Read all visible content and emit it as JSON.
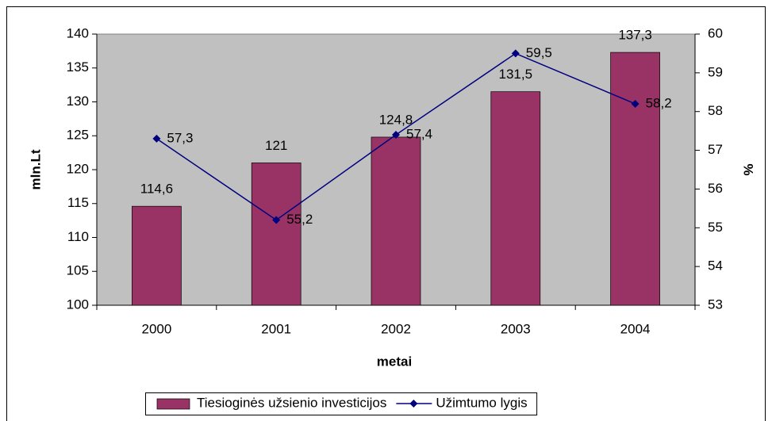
{
  "chart_data": {
    "type": "bar",
    "categories": [
      "2000",
      "2001",
      "2002",
      "2003",
      "2004"
    ],
    "series": [
      {
        "name": "Tiesioginės užsienio investicijos",
        "type": "bar",
        "color": "#993366",
        "values": [
          114.6,
          121,
          124.8,
          131.5,
          137.3
        ],
        "value_labels": [
          "114,6",
          "121",
          "124,8",
          "131,5",
          "137,3"
        ]
      },
      {
        "name": "Užimtumo lygis",
        "type": "line",
        "axis": "y2",
        "color": "#000080",
        "values": [
          57.3,
          55.2,
          57.4,
          59.5,
          58.2
        ],
        "value_labels": [
          "57,3",
          "55,2",
          "57,4",
          "59,5",
          "58,2"
        ]
      }
    ],
    "ylim": [
      100,
      140
    ],
    "yticks": [
      100,
      105,
      110,
      115,
      120,
      125,
      130,
      135,
      140
    ],
    "y2lim": [
      53,
      60
    ],
    "y2ticks": [
      53,
      54,
      55,
      56,
      57,
      58,
      59,
      60
    ],
    "xlabel": "metai",
    "ylabel": "mln.Lt",
    "y2label": "%",
    "legend": "bottom",
    "grid": false,
    "plot_background": "#c0c0c0"
  }
}
